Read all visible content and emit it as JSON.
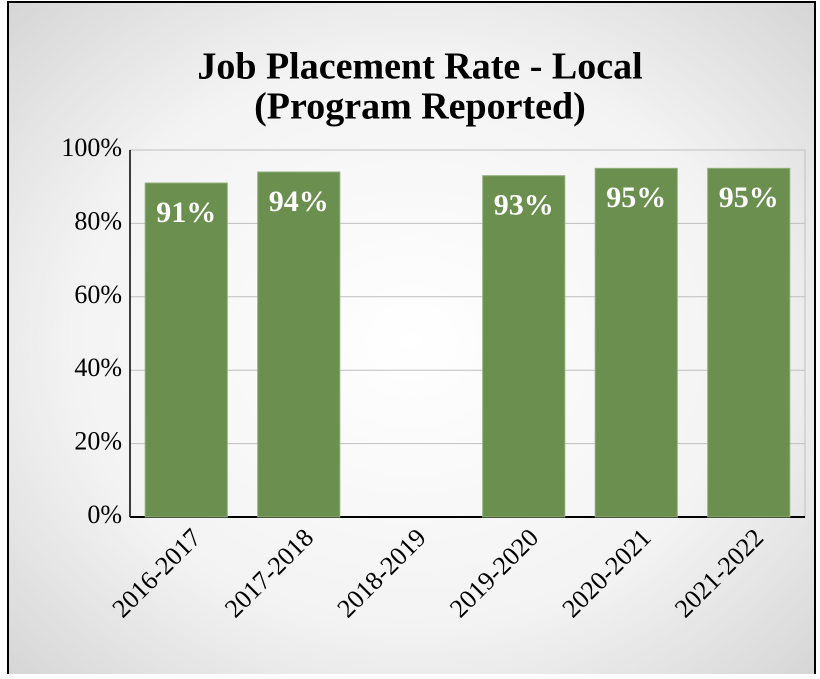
{
  "chart_data": {
    "type": "bar",
    "title": "Job Placement Rate - Local",
    "subtitle": "(Program Reported)",
    "categories": [
      "2016-2017",
      "2017-2018",
      "2018-2019",
      "2019-2020",
      "2020-2021",
      "2021-2022"
    ],
    "values": [
      91,
      94,
      null,
      93,
      95,
      95
    ],
    "value_labels": [
      "91%",
      "94%",
      null,
      "93%",
      "95%",
      "95%"
    ],
    "color": "#6b8f4e",
    "ylim": [
      0,
      100
    ],
    "yticks": [
      {
        "value": 0,
        "label": "0%"
      },
      {
        "value": 20,
        "label": "20%"
      },
      {
        "value": 40,
        "label": "40%"
      },
      {
        "value": 60,
        "label": "60%"
      },
      {
        "value": 80,
        "label": "80%"
      },
      {
        "value": 100,
        "label": "100%"
      }
    ],
    "grid": true
  }
}
